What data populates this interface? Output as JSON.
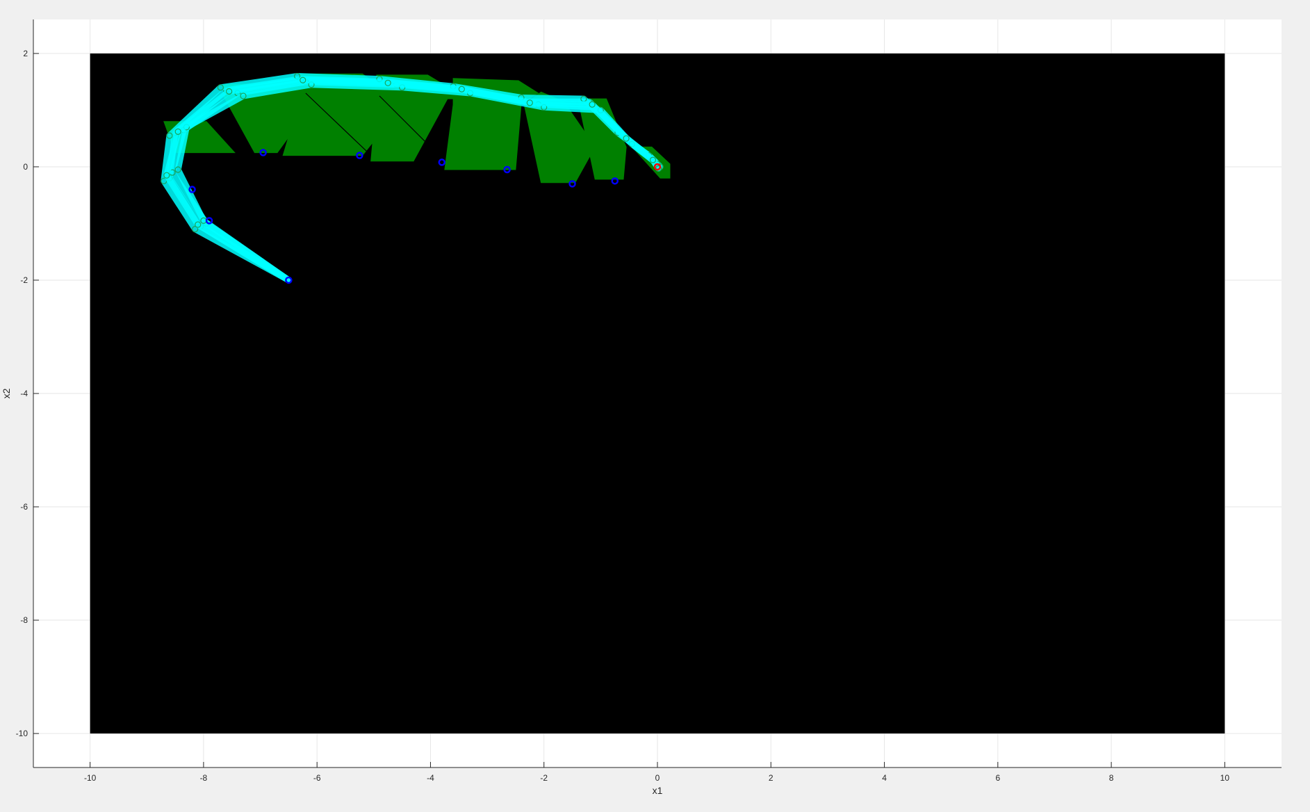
{
  "chart_data": {
    "type": "scatter",
    "xlabel": "x1",
    "ylabel": "x2",
    "xlim": [
      -11,
      11
    ],
    "ylim": [
      -10.6,
      2.6
    ],
    "xticks": [
      -10,
      -8,
      -6,
      -4,
      -2,
      0,
      2,
      4,
      6,
      8,
      10
    ],
    "yticks": [
      2,
      0,
      -2,
      -4,
      -6,
      -8,
      -10
    ],
    "xtick_labels": [
      "-10",
      "-8",
      "-6",
      "-4",
      "-2",
      "0",
      "2",
      "4",
      "6",
      "8",
      "10"
    ],
    "ytick_labels": [
      "2",
      "0",
      "-2",
      "-4",
      "-6",
      "-8",
      "-10"
    ],
    "grid": true,
    "region": {
      "x": [
        -10,
        10
      ],
      "y": [
        -10,
        2
      ],
      "color": "#000000"
    },
    "green_sets": [
      [
        [
          -7.65,
          1.25
        ],
        [
          -7.65,
          1.45
        ],
        [
          -6.45,
          1.48
        ],
        [
          -5.55,
          1.45
        ],
        [
          -6.05,
          1.15
        ],
        [
          -6.7,
          0.25
        ],
        [
          -7.1,
          0.25
        ]
      ],
      [
        [
          -6.3,
          1.2
        ],
        [
          -6.3,
          1.64
        ],
        [
          -5.2,
          1.64
        ],
        [
          -4.65,
          1.25
        ],
        [
          -4.65,
          0.9
        ],
        [
          -5.2,
          0.2
        ],
        [
          -6.6,
          0.2
        ]
      ],
      [
        [
          -4.95,
          1.2
        ],
        [
          -4.95,
          1.62
        ],
        [
          -4.05,
          1.62
        ],
        [
          -3.35,
          1.2
        ],
        [
          -3.7,
          1.2
        ],
        [
          -4.3,
          0.1
        ],
        [
          -5.05,
          0.1
        ]
      ],
      [
        [
          -3.6,
          1.1
        ],
        [
          -3.6,
          1.56
        ],
        [
          -2.45,
          1.52
        ],
        [
          -2.1,
          1.3
        ],
        [
          -2.4,
          1.12
        ],
        [
          -2.5,
          -0.05
        ],
        [
          -3.75,
          -0.05
        ]
      ],
      [
        [
          -2.35,
          1.1
        ],
        [
          -2.05,
          1.32
        ],
        [
          -1.65,
          1.15
        ],
        [
          -1.1,
          0.35
        ],
        [
          -1.45,
          -0.28
        ],
        [
          -2.05,
          -0.28
        ]
      ],
      [
        [
          -1.4,
          1.2
        ],
        [
          -0.9,
          1.2
        ],
        [
          -0.55,
          0.35
        ],
        [
          -0.6,
          -0.22
        ],
        [
          -1.1,
          -0.22
        ]
      ],
      [
        [
          -0.45,
          0.35
        ],
        [
          -0.1,
          0.35
        ],
        [
          0.22,
          0.05
        ],
        [
          0.22,
          -0.2
        ],
        [
          0.05,
          -0.2
        ],
        [
          -0.4,
          0.3
        ]
      ],
      [
        [
          -8.7,
          0.8
        ],
        [
          -7.95,
          0.8
        ],
        [
          -7.45,
          0.25
        ],
        [
          -8.5,
          0.25
        ]
      ]
    ],
    "black_lines": [
      [
        [
          -6.2,
          1.3
        ],
        [
          -5.1,
          0.25
        ]
      ],
      [
        [
          -4.9,
          1.25
        ],
        [
          -3.8,
          0.15
        ]
      ]
    ],
    "trajectories": [
      [
        [
          -6.5,
          -2.0
        ],
        [
          -8.05,
          -1.05
        ],
        [
          -8.6,
          -0.2
        ],
        [
          -8.5,
          0.6
        ],
        [
          -7.6,
          1.35
        ],
        [
          -6.3,
          1.55
        ],
        [
          -4.8,
          1.5
        ],
        [
          -3.5,
          1.38
        ],
        [
          -2.3,
          1.15
        ],
        [
          -1.2,
          1.15
        ],
        [
          -0.6,
          0.55
        ],
        [
          -0.1,
          0.15
        ],
        [
          0.0,
          0.0
        ]
      ],
      [
        [
          -6.5,
          -2.0
        ],
        [
          -7.95,
          -1.0
        ],
        [
          -8.55,
          -0.1
        ],
        [
          -8.35,
          0.65
        ],
        [
          -7.4,
          1.3
        ],
        [
          -6.2,
          1.5
        ],
        [
          -4.6,
          1.45
        ],
        [
          -3.4,
          1.35
        ],
        [
          -2.1,
          1.1
        ],
        [
          -1.1,
          1.05
        ],
        [
          -0.5,
          0.45
        ],
        [
          -0.05,
          0.1
        ],
        [
          0.0,
          0.0
        ]
      ],
      [
        [
          -6.5,
          -2.0
        ],
        [
          -8.15,
          -1.1
        ],
        [
          -8.7,
          -0.25
        ],
        [
          -8.6,
          0.55
        ],
        [
          -7.7,
          1.4
        ],
        [
          -6.35,
          1.6
        ],
        [
          -4.9,
          1.55
        ],
        [
          -3.6,
          1.42
        ],
        [
          -2.4,
          1.22
        ],
        [
          -1.3,
          1.2
        ],
        [
          -0.7,
          0.6
        ],
        [
          -0.15,
          0.2
        ],
        [
          0.05,
          0.0
        ]
      ],
      [
        [
          -6.5,
          -2.0
        ],
        [
          -8.0,
          -0.95
        ],
        [
          -8.45,
          -0.05
        ],
        [
          -8.3,
          0.7
        ],
        [
          -7.3,
          1.25
        ],
        [
          -6.1,
          1.45
        ],
        [
          -4.5,
          1.4
        ],
        [
          -3.3,
          1.3
        ],
        [
          -2.0,
          1.05
        ],
        [
          -1.0,
          1.0
        ],
        [
          -0.45,
          0.4
        ],
        [
          0.0,
          0.05
        ],
        [
          0.0,
          0.0
        ]
      ],
      [
        [
          -6.5,
          -2.0
        ],
        [
          -8.1,
          -1.02
        ],
        [
          -8.65,
          -0.15
        ],
        [
          -8.45,
          0.62
        ],
        [
          -7.55,
          1.33
        ],
        [
          -6.25,
          1.53
        ],
        [
          -4.75,
          1.48
        ],
        [
          -3.45,
          1.37
        ],
        [
          -2.25,
          1.13
        ],
        [
          -1.15,
          1.1
        ],
        [
          -0.55,
          0.5
        ],
        [
          -0.08,
          0.12
        ],
        [
          0.02,
          -0.03
        ]
      ]
    ],
    "trajectory_color": "#00ffff",
    "green_color": "#008000",
    "blue_points": [
      [
        -6.5,
        -2.0
      ],
      [
        -8.2,
        -0.4
      ],
      [
        -7.9,
        -0.95
      ],
      [
        -6.95,
        0.25
      ],
      [
        -5.25,
        0.2
      ],
      [
        -3.8,
        0.08
      ],
      [
        -2.65,
        -0.05
      ],
      [
        -1.5,
        -0.3
      ],
      [
        -0.75,
        -0.25
      ]
    ],
    "blue_color": "#0000ff",
    "target_point": [
      0.0,
      0.0
    ],
    "target_color": "#ff0000"
  }
}
